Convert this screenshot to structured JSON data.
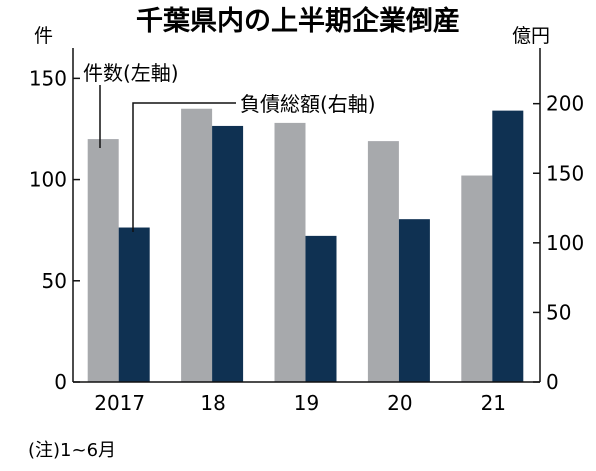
{
  "chart_data": {
    "type": "bar",
    "title": "千葉県内の上半期企業倒産",
    "categories": [
      "2017",
      "18",
      "19",
      "20",
      "21"
    ],
    "series": [
      {
        "name": "件数(左軸)",
        "axis": "left",
        "color": "#a7a9ac",
        "values": [
          120,
          135,
          128,
          119,
          102
        ]
      },
      {
        "name": "負債総額(右軸)",
        "axis": "right",
        "color": "#0f3152",
        "values": [
          111,
          184,
          105,
          117,
          195
        ]
      }
    ],
    "y_left": {
      "label": "件",
      "ylim": [
        0,
        165
      ],
      "ticks": [
        0,
        50,
        100,
        150
      ]
    },
    "y_right": {
      "label": "億円",
      "ylim": [
        0,
        240
      ],
      "ticks": [
        0,
        50,
        100,
        150,
        200
      ]
    },
    "note": "(注)1~6月",
    "grid": false,
    "legend": "top-left"
  }
}
